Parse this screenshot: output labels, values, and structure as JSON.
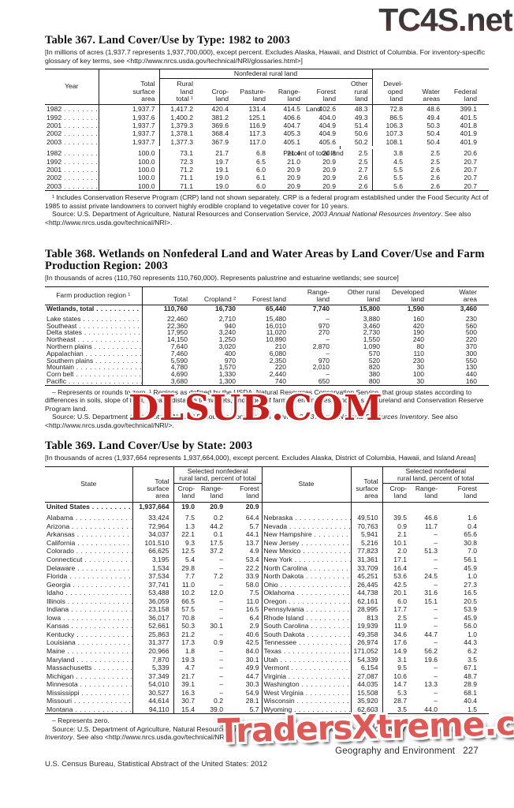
{
  "watermarks": {
    "top": "TC4S.net",
    "middle": "DLSUB.COM",
    "bottom": "TradersXtreme.com"
  },
  "footer": {
    "section_title": "Geography and Environment",
    "page_number": "227",
    "imprint": "U.S. Census Bureau, Statistical Abstract of the United States: 2012"
  },
  "table367": {
    "title": "Table 367. Land Cover/Use by Type: 1982 to 2003",
    "note": "[In millions of acres (1,937.7 represents 1,937,700,000), except percent. Excludes Alaska, Hawaii, and District of Columbia. For inventory-specific glossary of key terms, see <http://www.nrcs.usda.gov/technical/NRI/glossaries.html>]",
    "group_header": "Nonfederal rural land",
    "headers": {
      "year": "Year",
      "total": "Total\nsurface\narea",
      "rural": "Rural\nland\ntotal ¹",
      "crop": "Crop-\nland",
      "pasture": "Pasture-\nland",
      "range": "Range-\nland",
      "forest": "Forest\nland",
      "other": "Other\nrural\nland",
      "developed": "Devel-\noped\nland",
      "water": "Water\nareas",
      "federal": "Federal\nland"
    },
    "rows": [
      {
        "type": "section",
        "label": "Land"
      },
      {
        "type": "data",
        "cells": [
          "1982",
          "1,937.7",
          "1,417.2",
          "420.4",
          "131.4",
          "414.5",
          "402.6",
          "48.3",
          "72.8",
          "48.6",
          "399.1"
        ]
      },
      {
        "type": "data",
        "cells": [
          "1992",
          "1,937.6",
          "1,400.2",
          "381.2",
          "125.1",
          "406.6",
          "404.0",
          "49.3",
          "86.5",
          "49.4",
          "401.5"
        ]
      },
      {
        "type": "data",
        "cells": [
          "2001",
          "1,937.7",
          "1,379.3",
          "369.6",
          "116.9",
          "404.7",
          "404.9",
          "51.4",
          "106.3",
          "50.3",
          "401.8"
        ]
      },
      {
        "type": "data",
        "cells": [
          "2002",
          "1,937.7",
          "1,378.1",
          "368.4",
          "117.3",
          "405.3",
          "404.9",
          "50.6",
          "107.3",
          "50.4",
          "401.9"
        ]
      },
      {
        "type": "data",
        "cells": [
          "2003",
          "1,937.7",
          "1,377.3",
          "367.9",
          "117.0",
          "405.1",
          "405.6",
          "50.2",
          "108.1",
          "50.4",
          "401.9"
        ]
      },
      {
        "type": "section",
        "label": "Percent of total land",
        "gap": true
      },
      {
        "type": "data",
        "cells": [
          "1982",
          "100.0",
          "73.1",
          "21.7",
          "6.8",
          "21.4",
          "20.8",
          "2.5",
          "3.8",
          "2.5",
          "20.6"
        ]
      },
      {
        "type": "data",
        "cells": [
          "1992",
          "100.0",
          "72.3",
          "19.7",
          "6.5",
          "21.0",
          "20.9",
          "2.5",
          "4.5",
          "2.5",
          "20.7"
        ]
      },
      {
        "type": "data",
        "cells": [
          "2001",
          "100.0",
          "71.2",
          "19.1",
          "6.0",
          "20.9",
          "20.9",
          "2.7",
          "5.5",
          "2.6",
          "20.7"
        ]
      },
      {
        "type": "data",
        "cells": [
          "2002",
          "100.0",
          "71.1",
          "19.0",
          "6.1",
          "20.9",
          "20.9",
          "2.6",
          "5.5",
          "2.6",
          "20.7"
        ]
      },
      {
        "type": "data",
        "cells": [
          "2003",
          "100.0",
          "71.1",
          "19.0",
          "6.0",
          "20.9",
          "20.9",
          "2.6",
          "5.6",
          "2.6",
          "20.7"
        ]
      }
    ],
    "footnote1": "¹ Includes Conservation Reserve Program (CRP) land not shown separately. CRP is a federal program established under the Food Security Act of 1985 to assist private landowners to convert highly erodible cropland to vegetative cover for 10 years.",
    "source_prefix": "Source: U.S. Department of Agriculture, Natural Resources and Conservation Service, ",
    "source_italic": "2003 Annual National Resources Inventory",
    "source_suffix": ". See also <http://www.nrcs.usda.gov/technical/NRI>."
  },
  "table368": {
    "title": "Table 368. Wetlands on Nonfederal Land and Water Areas by Land Cover/Use and Farm Production Region: 2003",
    "note": "[In thousands of acres (110,760 represents 110,760,000). Represents palustrine and estuarine wetlands; see source]",
    "headers": {
      "region": "Farm production region ¹",
      "total": "Total",
      "cropland": "Cropland ²",
      "forest": "Forest land",
      "range": "Range-\nland",
      "other": "Other rural\nland",
      "developed": "Developed\nland",
      "water": "Water\narea"
    },
    "rows": [
      {
        "type": "data",
        "bold": true,
        "cells": [
          "Wetlands, total",
          "110,760",
          "16,730",
          "65,440",
          "7,740",
          "15,800",
          "1,590",
          "3,460"
        ]
      },
      {
        "type": "data",
        "gap": true,
        "cells": [
          "Lake states",
          "22,460",
          "2,710",
          "15,480",
          "–",
          "3,880",
          "160",
          "230"
        ]
      },
      {
        "type": "data",
        "cells": [
          "Southeast",
          "22,360",
          "940",
          "16,010",
          "970",
          "3,460",
          "420",
          "560"
        ]
      },
      {
        "type": "data",
        "cells": [
          "Delta states",
          "17,950",
          "3,240",
          "11,020",
          "270",
          "2,730",
          "190",
          "500"
        ]
      },
      {
        "type": "data",
        "cells": [
          "Northeast",
          "14,150",
          "1,250",
          "10,890",
          "–",
          "1,550",
          "240",
          "220"
        ]
      },
      {
        "type": "data",
        "cells": [
          "Northern plains",
          "7,640",
          "3,020",
          "210",
          "2,870",
          "1,090",
          "80",
          "370"
        ]
      },
      {
        "type": "data",
        "cells": [
          "Appalachian",
          "7,460",
          "400",
          "6,080",
          "–",
          "570",
          "110",
          "300"
        ]
      },
      {
        "type": "data",
        "cells": [
          "Southern plains",
          "5,590",
          "970",
          "2,350",
          "970",
          "520",
          "230",
          "550"
        ]
      },
      {
        "type": "data",
        "cells": [
          "Mountain",
          "4,780",
          "1,570",
          "220",
          "2,010",
          "820",
          "30",
          "130"
        ]
      },
      {
        "type": "data",
        "cells": [
          "Corn belt",
          "4,690",
          "1,330",
          "2,440",
          "–",
          "380",
          "100",
          "440"
        ]
      },
      {
        "type": "data",
        "cells": [
          "Pacific",
          "3,680",
          "1,300",
          "740",
          "650",
          "800",
          "30",
          "160"
        ]
      }
    ],
    "footnote1": "– Represents or rounds to zero. ¹ Regions as defined by the USDA, Natural Resources Conservation Service, that group states according to differences in soils, slope of land, climate, distance to markets, and types of farming enterprises. ² Includes pastureland and Conservation Reserve Program land.",
    "source_prefix": "Source: U.S. Department of Agriculture, Natural Resources Conservation Service, ",
    "source_italic": "2003 Annual National Resources Inventory",
    "source_suffix": ". See also <http://www.nrcs.usda.gov/technical/NRI/>."
  },
  "table369": {
    "title": "Table 369. Land Cover/Use by State: 2003",
    "note": "[In thousands of acres (1,937,664 represents 1,937,664,000), except percent. Excludes Alaska, District of Columbia, Hawaii, and Island Areas]",
    "group_header": "Selected nonfederal\nrural land, percent of total",
    "headers": {
      "state": "State",
      "total": "Total\nsurface\narea",
      "crop": "Crop-\nland",
      "range": "Range-\nland",
      "forest": "Forest\nland"
    },
    "rows": [
      {
        "type": "data",
        "bold": true,
        "cells": [
          "United States",
          "1,937,664",
          "19.0",
          "20.9",
          "20.9",
          "",
          "",
          "",
          "",
          ""
        ]
      },
      {
        "type": "data",
        "gap": true,
        "cells": [
          "Alabama",
          "33,424",
          "7.5",
          "0.2",
          "64.4",
          "Nebraska",
          "49,510",
          "39.5",
          "46.6",
          "1.6"
        ]
      },
      {
        "type": "data",
        "cells": [
          "Arizona",
          "72,964",
          "1.3",
          "44.2",
          "5.7",
          "Nevada",
          "70,763",
          "0.9",
          "11.7",
          "0.4"
        ]
      },
      {
        "type": "data",
        "cells": [
          "Arkansas",
          "34,037",
          "22.1",
          "0.1",
          "44.1",
          "New Hampshire",
          "5,941",
          "2.1",
          "–",
          "65.6"
        ]
      },
      {
        "type": "data",
        "cells": [
          "California",
          "101,510",
          "9.3",
          "17.5",
          "13.7",
          "New Jersey",
          "5,216",
          "10.1",
          "–",
          "30.8"
        ]
      },
      {
        "type": "data",
        "cells": [
          "Colorado",
          "66,625",
          "12.5",
          "37.2",
          "4.9",
          "New Mexico",
          "77,823",
          "2.0",
          "51.3",
          "7.0"
        ]
      },
      {
        "type": "data",
        "cells": [
          "Connecticut",
          "3,195",
          "5.4",
          "–",
          "53.4",
          "New York",
          "31,361",
          "17.1",
          "–",
          "56.1"
        ]
      },
      {
        "type": "data",
        "cells": [
          "Delaware",
          "1,534",
          "29.8",
          "–",
          "22.2",
          "North Carolina",
          "33,709",
          "16.4",
          "–",
          "45.9"
        ]
      },
      {
        "type": "data",
        "cells": [
          "Florida",
          "37,534",
          "7.7",
          "7.2",
          "33.9",
          "North Dakota",
          "45,251",
          "53.6",
          "24.5",
          "1.0"
        ]
      },
      {
        "type": "data",
        "cells": [
          "Georgia",
          "37,741",
          "11.0",
          "–",
          "58.0",
          "Ohio",
          "26,445",
          "42.5",
          "–",
          "27.3"
        ]
      },
      {
        "type": "data",
        "cells": [
          "Idaho",
          "53,488",
          "10.2",
          "12.0",
          "7.5",
          "Oklahoma",
          "44,738",
          "20.1",
          "31.6",
          "16.5"
        ]
      },
      {
        "type": "data",
        "cells": [
          "Illinois",
          "36,059",
          "66.5",
          "–",
          "11.0",
          "Oregon",
          "62,161",
          "6.0",
          "15.1",
          "20.5"
        ]
      },
      {
        "type": "data",
        "cells": [
          "Indiana",
          "23,158",
          "57.5",
          "–",
          "16.5",
          "Pennsylvania",
          "28,995",
          "17.7",
          "–",
          "53.9"
        ]
      },
      {
        "type": "data",
        "cells": [
          "Iowa",
          "36,017",
          "70.8",
          "–",
          "6.4",
          "Rhode Island",
          "813",
          "2.5",
          "–",
          "45.9"
        ]
      },
      {
        "type": "data",
        "cells": [
          "Kansas",
          "52,661",
          "50.3",
          "30.1",
          "2.9",
          "South Carolina",
          "19,939",
          "11.9",
          "–",
          "56.0"
        ]
      },
      {
        "type": "data",
        "cells": [
          "Kentucky",
          "25,863",
          "21.2",
          "–",
          "40.6",
          "South Dakota",
          "49,358",
          "34.6",
          "44.7",
          "1.0"
        ]
      },
      {
        "type": "data",
        "cells": [
          "Louisiana",
          "31,377",
          "17.3",
          "0.9",
          "42.5",
          "Tennessee",
          "26,974",
          "17.6",
          "–",
          "44.3"
        ]
      },
      {
        "type": "data",
        "cells": [
          "Maine",
          "20,966",
          "1.8",
          "–",
          "84.0",
          "Texas",
          "171,052",
          "14.9",
          "56.2",
          "6.2"
        ]
      },
      {
        "type": "data",
        "cells": [
          "Maryland",
          "7,870",
          "19.3",
          "–",
          "30.1",
          "Utah",
          "54,339",
          "3.1",
          "19.6",
          "3.5"
        ]
      },
      {
        "type": "data",
        "cells": [
          "Massachusetts",
          "5,339",
          "4.7",
          "–",
          "49.9",
          "Vermont",
          "6,154",
          "9.5",
          "–",
          "67.1"
        ]
      },
      {
        "type": "data",
        "cells": [
          "Michigan",
          "37,349",
          "21.7",
          "–",
          "44.7",
          "Virginia",
          "27,087",
          "10.6",
          "–",
          "48.7"
        ]
      },
      {
        "type": "data",
        "cells": [
          "Minnesota",
          "54,010",
          "39.1",
          "–",
          "30.3",
          "Washington",
          "44,035",
          "14.7",
          "13.3",
          "28.9"
        ]
      },
      {
        "type": "data",
        "cells": [
          "Mississippi",
          "30,527",
          "16.3",
          "–",
          "54.9",
          "West Virginia",
          "15,508",
          "5.3",
          "–",
          "68.1"
        ]
      },
      {
        "type": "data",
        "cells": [
          "Missouri",
          "44,614",
          "30.7",
          "0.2",
          "28.1",
          "Wisconsin",
          "35,920",
          "28.7",
          "–",
          "40.4"
        ]
      },
      {
        "type": "data",
        "cells": [
          "Montana",
          "94,110",
          "15.4",
          "39.0",
          "5.7",
          "Wyoming",
          "62,603",
          "3.5",
          "44.0",
          "1.5"
        ]
      }
    ],
    "footnote1": "– Represents zero.",
    "source_prefix": "Source: U.S. Department of Agriculture, Natural Resources and Conservation Service, ",
    "source_italic": "Summary Report, 2003 Annual National Resources Inventory",
    "source_suffix": ". See also <http://www.nrcs.usda.gov/technical/NRI/>."
  }
}
